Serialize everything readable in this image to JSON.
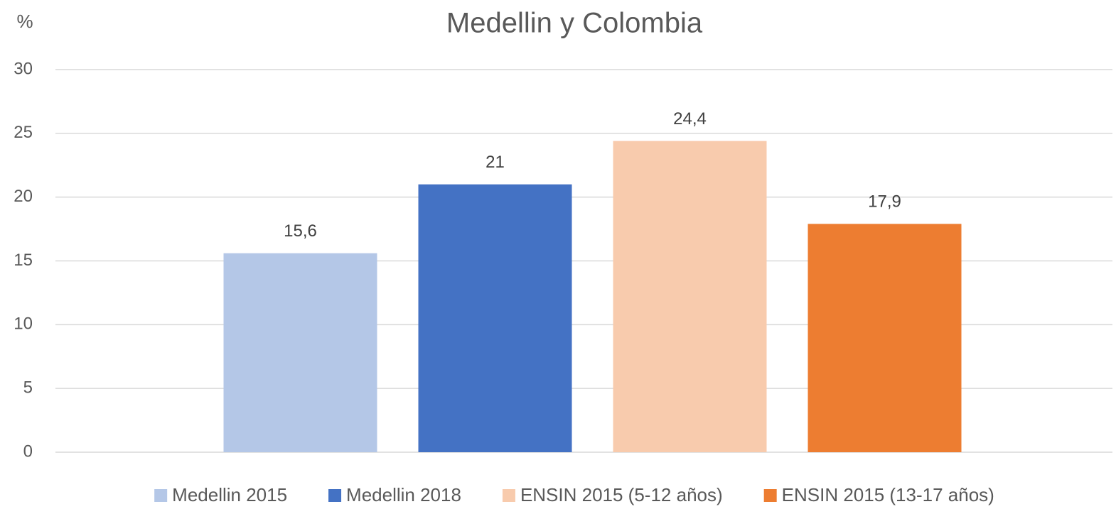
{
  "chart_data": {
    "type": "bar",
    "title": "Medellin y Colombia",
    "y_label": "%",
    "categories": [
      null
    ],
    "series": [
      {
        "name": "Medellin 2015",
        "color": "#b4c7e7",
        "values": [
          15.6
        ],
        "value_labels": [
          "15,6"
        ]
      },
      {
        "name": "Medellin 2018",
        "color": "#4472c4",
        "values": [
          21
        ]
      },
      {
        "name": "ENSIN 2015 (5-12 años)",
        "color": "#f8cbad",
        "values": [
          24.4
        ],
        "value_labels": [
          "24,4"
        ]
      },
      {
        "name": "ENSIN 2015 (13-17 años)",
        "color": "#ed7d31",
        "values": [
          17.9
        ],
        "value_labels": [
          "17,9"
        ]
      }
    ],
    "ylim": [
      0,
      30
    ],
    "yticks": [
      0,
      5,
      10,
      15,
      20,
      25,
      30
    ],
    "grid": true,
    "legend": "bottom"
  }
}
